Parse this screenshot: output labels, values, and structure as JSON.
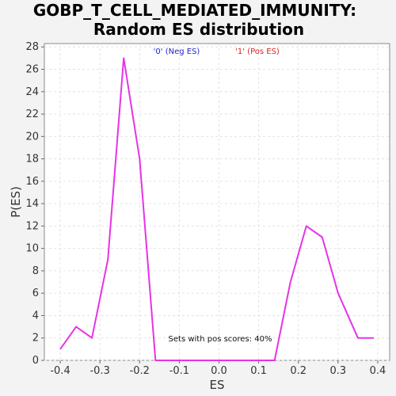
{
  "chart_data": {
    "type": "line",
    "title_line1": "GOBP_T_CELL_MEDIATED_IMMUNITY:",
    "title_line2": "Random ES distribution",
    "xlabel": "ES",
    "ylabel": "P(ES)",
    "xlim": [
      -0.44,
      0.43
    ],
    "ylim": [
      0,
      28.3
    ],
    "xticks": [
      -0.4,
      -0.3,
      -0.2,
      -0.1,
      0.0,
      0.1,
      0.2,
      0.3,
      0.4
    ],
    "xtick_labels": [
      "-0.4",
      "-0.3",
      "-0.2",
      "-0.1",
      "0.0",
      "0.1",
      "0.2",
      "0.3",
      "0.4"
    ],
    "yticks": [
      0,
      2,
      4,
      6,
      8,
      10,
      12,
      14,
      16,
      18,
      20,
      22,
      24,
      26,
      28
    ],
    "grid": true,
    "legend": {
      "neg_label": "'0' (Neg ES)",
      "pos_label": "'1' (Pos ES)",
      "neg_color": "#2222cc",
      "pos_color": "#dd2222"
    },
    "annotation": "Sets with pos scores: 40%",
    "line_color": "#e633e6",
    "series": [
      {
        "x": [
          -0.4,
          -0.36,
          -0.32,
          -0.28,
          -0.24,
          -0.2,
          -0.16,
          -0.12,
          -0.08,
          -0.04,
          0.0,
          0.04,
          0.08,
          0.1,
          0.14,
          0.18,
          0.22,
          0.26,
          0.3,
          0.35,
          0.39
        ],
        "y": [
          1,
          3,
          2,
          9,
          27,
          18,
          0,
          0,
          0,
          0,
          0,
          0,
          0,
          0,
          0,
          7,
          12,
          11,
          6,
          2,
          2
        ]
      }
    ]
  }
}
